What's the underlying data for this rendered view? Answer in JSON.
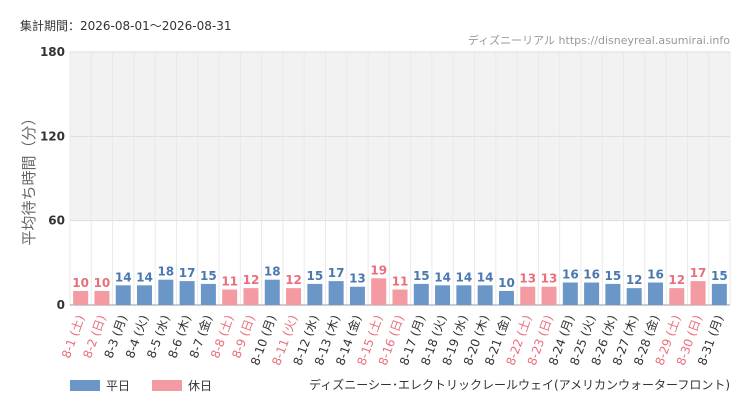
{
  "header": {
    "period": "集計期間：2026-08-01～2026-08-31",
    "brand": "ディズニーリアル https://disneyreal.asumirai.info"
  },
  "legend": {
    "weekday": {
      "label": "平日",
      "color": "#6a96c8"
    },
    "holiday": {
      "label": "休日",
      "color": "#f49aa2"
    }
  },
  "footer": {
    "attraction": "ディズニーシー･エレクトリックレールウェイ(アメリカンウォーターフロント)"
  },
  "chart_data": {
    "type": "bar",
    "ylabel": "平均待ち時間（分）",
    "ylim": [
      0,
      180
    ],
    "yticks": [
      0,
      60,
      120,
      180
    ],
    "shaded_band": [
      60,
      180
    ],
    "grid": true,
    "legend_position": "bottom-left",
    "colors": {
      "weekday_bar": "#6a96c8",
      "holiday_bar": "#f49aa2",
      "weekday_label": "#4a78b0",
      "holiday_label": "#ea6e7c",
      "weekday_axis": "#333333",
      "holiday_axis": "#ea6e7c"
    },
    "categories": [
      "8-1 (土)",
      "8-2 (日)",
      "8-3 (月)",
      "8-4 (火)",
      "8-5 (水)",
      "8-6 (木)",
      "8-7 (金)",
      "8-8 (土)",
      "8-9 (日)",
      "8-10 (月)",
      "8-11 (火)",
      "8-12 (水)",
      "8-13 (木)",
      "8-14 (金)",
      "8-15 (土)",
      "8-16 (日)",
      "8-17 (月)",
      "8-18 (火)",
      "8-19 (水)",
      "8-20 (木)",
      "8-21 (金)",
      "8-22 (土)",
      "8-23 (日)",
      "8-24 (月)",
      "8-25 (火)",
      "8-26 (水)",
      "8-27 (木)",
      "8-28 (金)",
      "8-29 (土)",
      "8-30 (日)",
      "8-31 (月)"
    ],
    "values": [
      10,
      10,
      14,
      14,
      18,
      17,
      15,
      11,
      12,
      18,
      12,
      15,
      17,
      13,
      19,
      11,
      15,
      14,
      14,
      14,
      10,
      13,
      13,
      16,
      16,
      15,
      12,
      16,
      12,
      17,
      15
    ],
    "holiday": [
      true,
      true,
      false,
      false,
      false,
      false,
      false,
      true,
      true,
      false,
      true,
      false,
      false,
      false,
      true,
      true,
      false,
      false,
      false,
      false,
      false,
      true,
      true,
      false,
      false,
      false,
      false,
      false,
      true,
      true,
      false
    ]
  }
}
